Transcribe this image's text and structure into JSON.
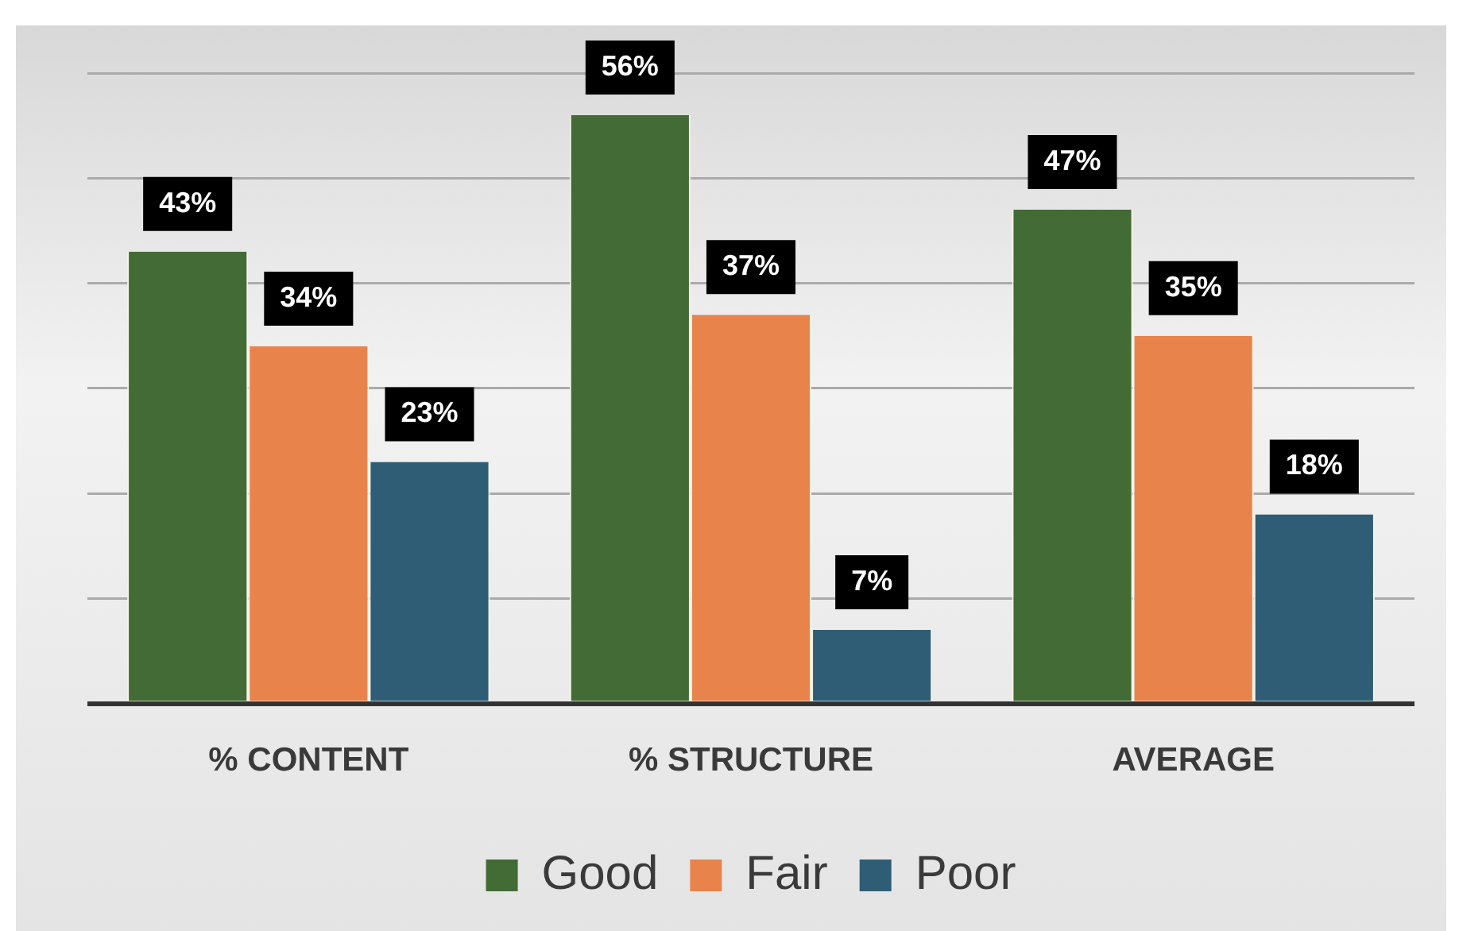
{
  "chart_data": {
    "type": "bar",
    "categories": [
      "% CONTENT",
      "% STRUCTURE",
      "AVERAGE"
    ],
    "series": [
      {
        "name": "Good",
        "color": "#436b35",
        "values": [
          43,
          56,
          47
        ],
        "value_labels": [
          "43%",
          "56%",
          "47%"
        ]
      },
      {
        "name": "Fair",
        "color": "#e8834c",
        "values": [
          34,
          37,
          35
        ],
        "value_labels": [
          "34%",
          "37%",
          "35%"
        ]
      },
      {
        "name": "Poor",
        "color": "#2f5d75",
        "values": [
          23,
          7,
          18
        ],
        "value_labels": [
          "23%",
          "7%",
          "18%"
        ]
      }
    ],
    "grid": "y",
    "legend": "bottom",
    "tick_labels": "x"
  }
}
